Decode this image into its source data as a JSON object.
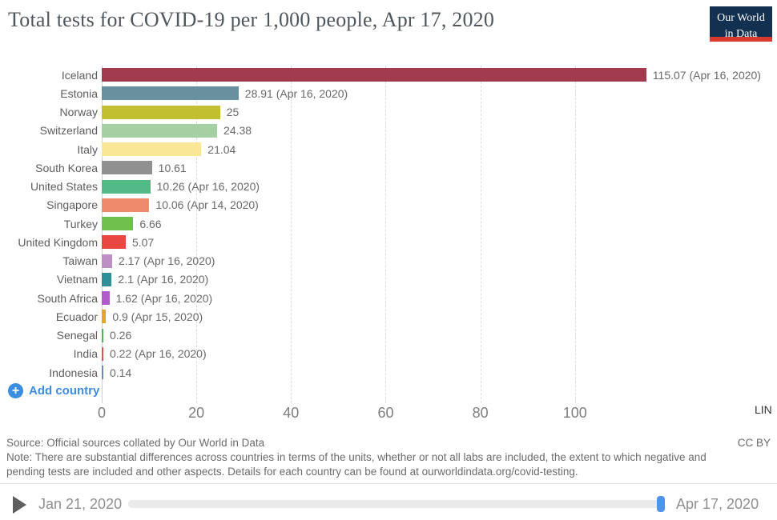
{
  "header": {
    "title": "Total tests for COVID-19 per 1,000 people, Apr 17, 2020",
    "logo": {
      "line1": "Our World",
      "line2": "in Data",
      "bg_color": "#12304f",
      "accent_color": "#d93a30"
    }
  },
  "chart_data": {
    "type": "bar",
    "orientation": "horizontal",
    "title": "Total tests for COVID-19 per 1,000 people, Apr 17, 2020",
    "categories": [
      "Iceland",
      "Estonia",
      "Norway",
      "Switzerland",
      "Italy",
      "South Korea",
      "United States",
      "Singapore",
      "Turkey",
      "United Kingdom",
      "Taiwan",
      "Vietnam",
      "South Africa",
      "Ecuador",
      "Senegal",
      "India",
      "Indonesia"
    ],
    "values": [
      115.07,
      28.91,
      25,
      24.38,
      21.04,
      10.61,
      10.26,
      10.06,
      6.66,
      5.07,
      2.17,
      2.1,
      1.62,
      0.9,
      0.26,
      0.22,
      0.14
    ],
    "bar_labels": [
      "115.07 (Apr 16, 2020)",
      "28.91 (Apr 16, 2020)",
      "25",
      "24.38",
      "21.04",
      "10.61",
      "10.26 (Apr 16, 2020)",
      "10.06 (Apr 14, 2020)",
      "6.66",
      "5.07",
      "2.17 (Apr 16, 2020)",
      "2.1 (Apr 16, 2020)",
      "1.62 (Apr 16, 2020)",
      "0.9 (Apr 15, 2020)",
      "0.26",
      "0.22 (Apr 16, 2020)",
      "0.14"
    ],
    "bar_colors": [
      "#a23b4e",
      "#68909f",
      "#c3c02f",
      "#a4d0a3",
      "#fae795",
      "#909090",
      "#52ba86",
      "#f08a6c",
      "#6fc04c",
      "#e94742",
      "#bd8fc5",
      "#2e8f99",
      "#b25ccb",
      "#e9a329",
      "#4fb457",
      "#e25350",
      "#6d87c2"
    ],
    "xticks": [
      0,
      20,
      40,
      60,
      80,
      100
    ],
    "xlim": [
      0,
      141
    ],
    "grid": "vertical-dashed",
    "legend": "none"
  },
  "controls": {
    "add_country_label": "Add country",
    "plus_icon": "+",
    "scale_label": "LIN"
  },
  "footer": {
    "source": "Source: Official sources collated by Our World in Data",
    "note": "Note: There are substantial differences across countries in terms of the units, whether or not all labs are included, the extent to which negative and pending tests are included and other aspects. Details for each country can be found at ourworldindata.org/covid-testing.",
    "license": "CC BY"
  },
  "timeline": {
    "start_date": "Jan 21, 2020",
    "end_date": "Apr 17, 2020"
  }
}
